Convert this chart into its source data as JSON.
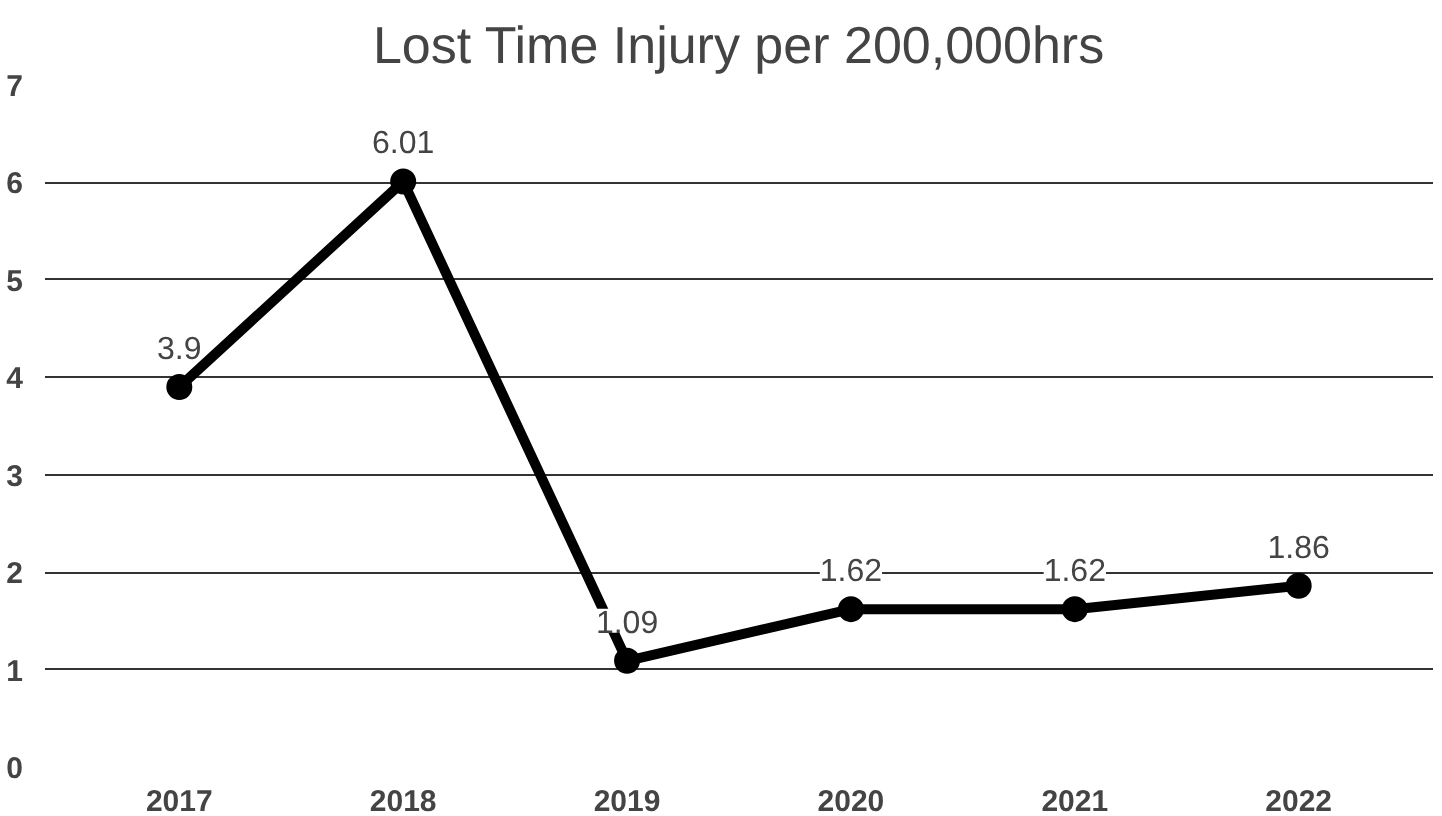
{
  "chart_data": {
    "type": "line",
    "title": "Lost Time Injury per 200,000hrs",
    "categories": [
      "2017",
      "2018",
      "2019",
      "2020",
      "2021",
      "2022"
    ],
    "series": [
      {
        "color": "#000000",
        "values": [
          3.9,
          6.01,
          1.09,
          1.62,
          1.62,
          1.86
        ]
      }
    ],
    "ylim": [
      0,
      7
    ],
    "yticks": [
      0,
      1,
      2,
      3,
      4,
      5,
      6,
      7
    ],
    "grid": "y",
    "marker": "circle",
    "line_style": "solid",
    "data_labels": true
  }
}
